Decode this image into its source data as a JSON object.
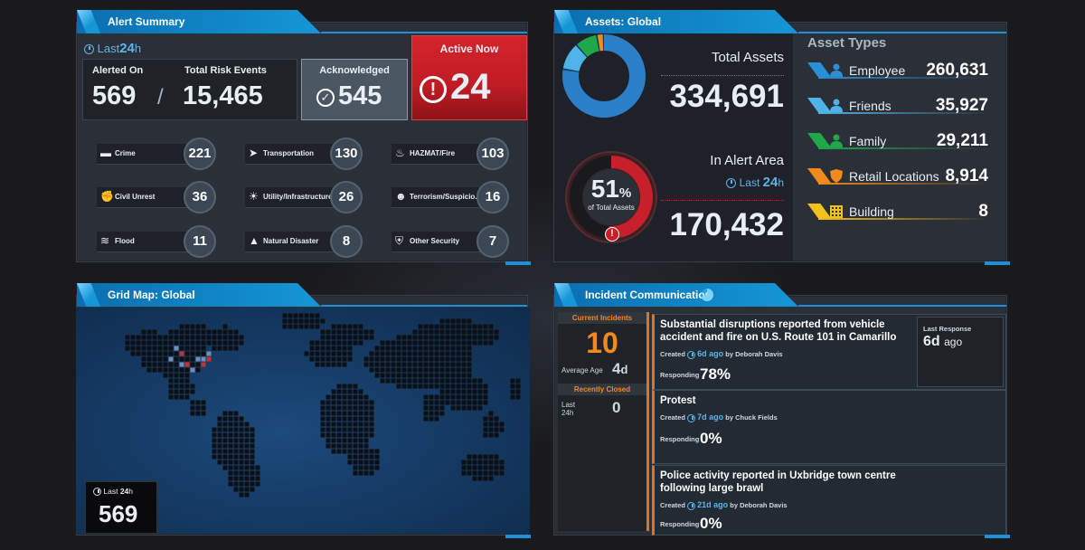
{
  "alert_summary": {
    "title": "Alert Summary",
    "period_prefix": "Last",
    "period_value": "24",
    "period_unit": "h",
    "alerted_on_label": "Alerted On",
    "alerted_on_value": "569",
    "separator": "/",
    "total_risk_label": "Total Risk Events",
    "total_risk_value": "15,465",
    "acknowledged_label": "Acknowledged",
    "acknowledged_value": "545",
    "active_now_label": "Active Now",
    "active_now_value": "24",
    "categories": [
      {
        "label": "Crime",
        "value": "221",
        "icon": "gun-icon"
      },
      {
        "label": "Transportation",
        "value": "130",
        "icon": "navigation-arrow-icon"
      },
      {
        "label": "HAZMAT/Fire",
        "value": "103",
        "icon": "fire-icon"
      },
      {
        "label": "Civil Unrest",
        "value": "36",
        "icon": "protest-fist-icon"
      },
      {
        "label": "Utility/Infrastructure",
        "value": "26",
        "icon": "lightbulb-icon"
      },
      {
        "label": "Terrorism/Suspicio...",
        "value": "16",
        "icon": "masked-person-icon"
      },
      {
        "label": "Flood",
        "value": "11",
        "icon": "flood-icon"
      },
      {
        "label": "Natural Disaster",
        "value": "8",
        "icon": "volcano-icon"
      },
      {
        "label": "Other Security",
        "value": "7",
        "icon": "shield-icon"
      }
    ]
  },
  "assets": {
    "title": "Assets: Global",
    "total_label": "Total Assets",
    "total_value": "334,691",
    "alert_area_label": "In Alert Area",
    "alert_period_prefix": "Last",
    "alert_period_value": "24",
    "alert_period_unit": "h",
    "alert_area_value": "170,432",
    "percent_value": "51",
    "percent_sign": "%",
    "percent_caption": "of Total Assets",
    "percent_fraction": 0.51,
    "types_heading": "Asset Types",
    "types": [
      {
        "label": "Employee",
        "value": "260,631",
        "color": "#2a8fd6",
        "icon": "person-icon"
      },
      {
        "label": "Friends",
        "value": "35,927",
        "color": "#4fb3e8",
        "icon": "person-icon"
      },
      {
        "label": "Family",
        "value": "29,211",
        "color": "#1fa84a",
        "icon": "person-icon"
      },
      {
        "label": "Retail Locations",
        "value": "8,914",
        "color": "#f08a1c",
        "icon": "shield-icon"
      },
      {
        "label": "Building",
        "value": "8",
        "color": "#f2c01a",
        "icon": "building-icon"
      }
    ],
    "donut_segments": [
      {
        "value": 260631,
        "color": "#2a7fc8"
      },
      {
        "value": 35927,
        "color": "#4fb3e8"
      },
      {
        "value": 29211,
        "color": "#1fa84a"
      },
      {
        "value": 8914,
        "color": "#f08a1c"
      }
    ]
  },
  "grid_map": {
    "title": "Grid Map: Global",
    "period_prefix": "Last",
    "period_value": "24",
    "period_unit": "h",
    "count": "569"
  },
  "incidents": {
    "title": "Incident Communication",
    "current_label": "Current Incidents",
    "current_value": "10",
    "avg_age_label": "Average Age",
    "avg_age_value": "4",
    "avg_age_unit": "d",
    "recent_closed_label": "Recently Closed",
    "recent_period_line1": "Last",
    "recent_period_line2": "24h",
    "recent_closed_value": "0",
    "last_response_label": "Last Response",
    "last_response_value": "6d",
    "last_response_suffix": "ago",
    "items": [
      {
        "title": "Substantial disruptions reported from vehicle accident and fire on U.S. Route 101 in Camarillo",
        "created_label": "Created",
        "age": "6d ago",
        "by": "by Deborah Davis",
        "responding_label": "Responding",
        "responding_value": "78%"
      },
      {
        "title": "Protest",
        "created_label": "Created",
        "age": "7d ago",
        "by": "by Chuck Fields",
        "responding_label": "Responding",
        "responding_value": "0%"
      },
      {
        "title": "Police activity reported in Uxbridge town centre following large brawl",
        "created_label": "Created",
        "age": "21d ago",
        "by": "by Deborah Davis",
        "responding_label": "Responding",
        "responding_value": "0%"
      }
    ]
  }
}
